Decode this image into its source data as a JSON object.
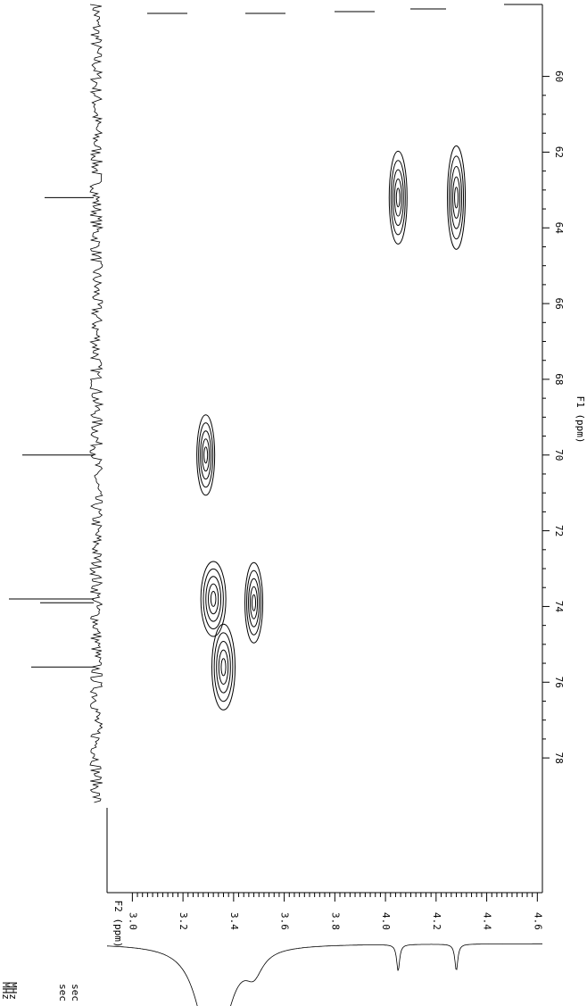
{
  "chart_data": {
    "type": "contour",
    "x_label": "F2 (ppm)",
    "y_label": "F1 (ppm)",
    "xlim": [
      2.9,
      4.62
    ],
    "xticks": [
      {
        "value": 3.0,
        "label": "3.0"
      },
      3.2,
      3.4,
      3.6,
      3.8,
      {
        "value": 4.0,
        "label": "4.0"
      },
      4.2,
      4.4,
      4.6
    ],
    "ylim": [
      58.1,
      79.2
    ],
    "yticks": [
      60,
      62,
      64,
      66,
      68,
      70,
      72,
      74,
      76,
      78
    ],
    "peaks": {
      "f2": [
        3.29,
        3.32,
        3.36,
        3.48,
        4.05,
        4.28
      ],
      "f1": [
        70.0,
        73.8,
        75.6,
        73.9,
        63.2,
        63.2
      ]
    },
    "color": "#000000",
    "notes": [
      "MHz",
      "MHz",
      "sec",
      "sec"
    ]
  }
}
